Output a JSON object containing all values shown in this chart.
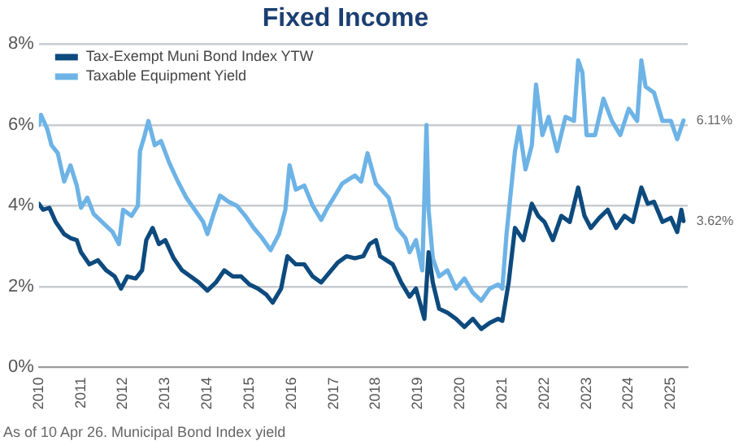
{
  "chart_data": {
    "type": "line",
    "title": "Fixed Income",
    "annotations": [
      "As of 10 Apr 26. Municipal Bond Index yield"
    ],
    "xlim": [
      2010,
      2025.4
    ],
    "xticks": [
      2010,
      2011,
      2012,
      2013,
      2014,
      2015,
      2016,
      2017,
      2018,
      2019,
      2020,
      2021,
      2022,
      2023,
      2024,
      2025
    ],
    "ylim": [
      0,
      8
    ],
    "yticks": [
      {
        "value": 0,
        "label": "0%"
      },
      {
        "value": 2,
        "label": "2%"
      },
      {
        "value": 4,
        "label": "4%"
      },
      {
        "value": 6,
        "label": "6%"
      },
      {
        "value": 8,
        "label": "8%"
      }
    ],
    "grid": "y",
    "legend": "top left",
    "marker": "none",
    "line_style": "solid",
    "series": [
      {
        "name": "Tax-Exempt Muni Bond Index YTW",
        "color": "#0d4a7e",
        "x": [
          2010,
          2010.1,
          2010.25,
          2010.4,
          2010.6,
          2010.75,
          2010.9,
          2011,
          2011.2,
          2011.4,
          2011.6,
          2011.8,
          2011.95,
          2012.1,
          2012.3,
          2012.45,
          2012.55,
          2012.7,
          2012.85,
          2013,
          2013.2,
          2013.4,
          2013.6,
          2013.8,
          2014,
          2014.2,
          2014.4,
          2014.6,
          2014.8,
          2015,
          2015.2,
          2015.4,
          2015.55,
          2015.75,
          2015.9,
          2016.1,
          2016.3,
          2016.5,
          2016.7,
          2016.9,
          2017.1,
          2017.3,
          2017.5,
          2017.7,
          2017.85,
          2018,
          2018.1,
          2018.4,
          2018.6,
          2018.8,
          2018.95,
          2019.15,
          2019.25,
          2019.35,
          2019.5,
          2019.7,
          2019.9,
          2020.1,
          2020.3,
          2020.5,
          2020.7,
          2020.9,
          2021,
          2021.15,
          2021.3,
          2021.5,
          2021.7,
          2021.85,
          2022,
          2022.2,
          2022.4,
          2022.6,
          2022.8,
          2022.95,
          2023.1,
          2023.3,
          2023.5,
          2023.7,
          2023.9,
          2024.1,
          2024.3,
          2024.45,
          2024.6,
          2024.8,
          2025,
          2025.15,
          2025.25,
          2025.3
        ],
        "values": [
          4.05,
          3.9,
          3.95,
          3.6,
          3.3,
          3.2,
          3.15,
          2.85,
          2.55,
          2.65,
          2.4,
          2.25,
          1.95,
          2.25,
          2.2,
          2.4,
          3.15,
          3.45,
          3.05,
          3.15,
          2.7,
          2.4,
          2.25,
          2.1,
          1.9,
          2.1,
          2.4,
          2.25,
          2.25,
          2.05,
          1.95,
          1.8,
          1.6,
          1.95,
          2.75,
          2.55,
          2.55,
          2.25,
          2.1,
          2.35,
          2.6,
          2.75,
          2.7,
          2.75,
          3.05,
          3.15,
          2.75,
          2.55,
          2.1,
          1.75,
          1.95,
          1.2,
          2.85,
          2.1,
          1.45,
          1.35,
          1.2,
          1.0,
          1.2,
          0.95,
          1.1,
          1.2,
          1.15,
          2.1,
          3.45,
          3.15,
          4.05,
          3.75,
          3.6,
          3.15,
          3.75,
          3.6,
          4.45,
          3.75,
          3.45,
          3.7,
          3.9,
          3.45,
          3.75,
          3.6,
          4.45,
          4.05,
          4.1,
          3.6,
          3.7,
          3.35,
          3.9,
          3.62
        ],
        "value_labels": [
          null,
          null,
          null,
          null,
          null,
          null,
          null,
          null,
          null,
          null,
          null,
          null,
          null,
          null,
          null,
          null,
          null,
          null,
          null,
          null,
          null,
          null,
          null,
          null,
          null,
          null,
          null,
          null,
          null,
          null,
          null,
          null,
          null,
          null,
          null,
          null,
          null,
          null,
          null,
          null,
          null,
          null,
          null,
          null,
          null,
          null,
          null,
          null,
          null,
          null,
          null,
          null,
          null,
          null,
          null,
          null,
          null,
          null,
          null,
          null,
          null,
          null,
          null,
          null,
          null,
          null,
          null,
          null,
          null,
          null,
          null,
          null,
          null,
          null,
          null,
          null,
          null,
          null,
          null,
          null,
          null,
          null,
          null,
          null,
          null,
          null,
          null,
          "3.62%"
        ]
      },
      {
        "name": "Taxable Equipment Yield",
        "color": "#6db3e6",
        "x": [
          2010,
          2010.05,
          2010.2,
          2010.3,
          2010.45,
          2010.6,
          2010.75,
          2010.9,
          2011,
          2011.15,
          2011.3,
          2011.5,
          2011.75,
          2011.9,
          2012,
          2012.2,
          2012.35,
          2012.4,
          2012.5,
          2012.6,
          2012.75,
          2012.9,
          2013.1,
          2013.3,
          2013.5,
          2013.7,
          2013.9,
          2014,
          2014.15,
          2014.3,
          2014.5,
          2014.7,
          2014.9,
          2015.1,
          2015.3,
          2015.5,
          2015.7,
          2015.85,
          2015.95,
          2016.1,
          2016.3,
          2016.5,
          2016.7,
          2016.85,
          2017,
          2017.2,
          2017.5,
          2017.65,
          2017.8,
          2018,
          2018.3,
          2018.5,
          2018.7,
          2018.8,
          2018.95,
          2019.1,
          2019.2,
          2019.25,
          2019.35,
          2019.5,
          2019.7,
          2019.9,
          2020.1,
          2020.3,
          2020.5,
          2020.7,
          2020.9,
          2021,
          2021.1,
          2021.3,
          2021.4,
          2021.55,
          2021.7,
          2021.8,
          2021.95,
          2022.1,
          2022.3,
          2022.5,
          2022.7,
          2022.8,
          2022.9,
          2023,
          2023.2,
          2023.4,
          2023.6,
          2023.8,
          2024,
          2024.2,
          2024.3,
          2024.4,
          2024.6,
          2024.8,
          2025,
          2025.15,
          2025.3
        ],
        "values": [
          6.0,
          6.25,
          5.9,
          5.5,
          5.3,
          4.6,
          5.0,
          4.5,
          3.95,
          4.2,
          3.8,
          3.6,
          3.35,
          3.05,
          3.9,
          3.75,
          4.0,
          5.35,
          5.7,
          6.1,
          5.5,
          5.6,
          5.05,
          4.6,
          4.2,
          3.9,
          3.6,
          3.3,
          3.8,
          4.25,
          4.1,
          4.0,
          3.75,
          3.45,
          3.2,
          2.9,
          3.3,
          3.9,
          5.0,
          4.4,
          4.5,
          4.0,
          3.65,
          3.95,
          4.2,
          4.55,
          4.75,
          4.6,
          5.3,
          4.55,
          4.2,
          3.45,
          3.2,
          2.85,
          3.15,
          2.4,
          6.0,
          3.9,
          2.7,
          2.25,
          2.4,
          1.95,
          2.2,
          1.85,
          1.65,
          1.95,
          2.05,
          1.95,
          3.3,
          5.35,
          5.95,
          4.9,
          5.5,
          7.0,
          5.75,
          6.2,
          5.35,
          6.2,
          6.1,
          7.6,
          7.3,
          5.75,
          5.75,
          6.65,
          6.1,
          5.75,
          6.4,
          6.1,
          7.6,
          6.95,
          6.8,
          6.1,
          6.1,
          5.65,
          6.11
        ],
        "value_labels": [
          null,
          null,
          null,
          null,
          null,
          null,
          null,
          null,
          null,
          null,
          null,
          null,
          null,
          null,
          null,
          null,
          null,
          null,
          null,
          null,
          null,
          null,
          null,
          null,
          null,
          null,
          null,
          null,
          null,
          null,
          null,
          null,
          null,
          null,
          null,
          null,
          null,
          null,
          null,
          null,
          null,
          null,
          null,
          null,
          null,
          null,
          null,
          null,
          null,
          null,
          null,
          null,
          null,
          null,
          null,
          null,
          null,
          null,
          null,
          null,
          null,
          null,
          null,
          null,
          null,
          null,
          null,
          null,
          null,
          null,
          null,
          null,
          null,
          null,
          null,
          null,
          null,
          null,
          null,
          null,
          null,
          null,
          null,
          null,
          null,
          null,
          null,
          null,
          null,
          null,
          null,
          null,
          null,
          null,
          "6.11%"
        ]
      }
    ]
  }
}
